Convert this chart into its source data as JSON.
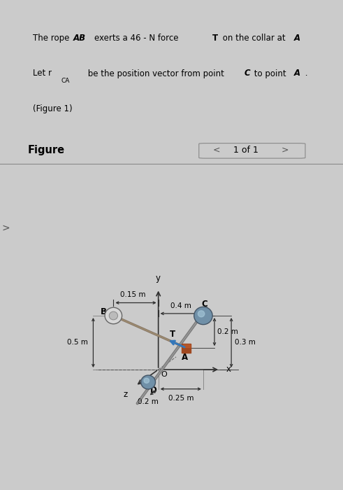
{
  "bg_color": "#cbcbcb",
  "text_box_color": "#c2c2c2",
  "figure_label": "Figure",
  "nav_text": "<  1 of 1  >",
  "dim_015": "0.15 m",
  "dim_04": "0.4 m",
  "dim_02x": "0.2 m",
  "dim_03": "0.3 m",
  "dim_05": "0.5 m",
  "dim_025": "0.25 m",
  "dim_02z": "0.2 m",
  "label_B": "B",
  "label_C": "C",
  "label_A": "A",
  "label_T": "T",
  "label_D": "D",
  "label_O": "O",
  "label_x": "x",
  "label_y": "y",
  "label_z": "z",
  "rope_color": "#9a8870",
  "force_color": "#3377bb",
  "collar_color": "#a04820",
  "node_B_color": "#e0e0e0",
  "node_C_color": "#6688aa",
  "node_D_color": "#6688aa",
  "axis_color": "#303030",
  "dim_line_color": "#303030",
  "ox": 4.6,
  "oy": 3.5,
  "sc": 2.2
}
